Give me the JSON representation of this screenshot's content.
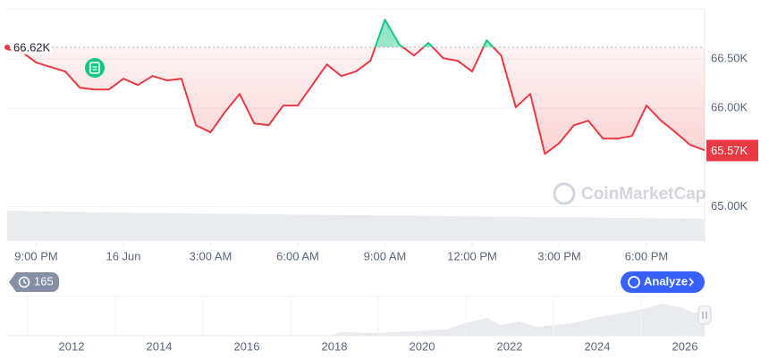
{
  "chart_data": {
    "type": "line",
    "values": [
      66600,
      66573,
      66464,
      66418,
      66373,
      66209,
      66191,
      66191,
      66300,
      66236,
      66327,
      66282,
      66300,
      65827,
      65755,
      65964,
      66145,
      65845,
      65827,
      66027,
      66027,
      66236,
      66445,
      66327,
      66373,
      66482,
      66900,
      66645,
      66536,
      66664,
      66509,
      66482,
      66373,
      66691,
      66536,
      66009,
      66145,
      65536,
      65645,
      65827,
      65873,
      65691,
      65691,
      65718,
      66027,
      65873,
      65755,
      65627,
      65573
    ],
    "colors": {
      "below": "#ea3943",
      "above": "#16c784"
    },
    "xlim": [
      0,
      48
    ],
    "xticks": [
      {
        "value": 2,
        "label": "9:00 PM"
      },
      {
        "value": 8,
        "label": "16 Jun"
      },
      {
        "value": 14,
        "label": "3:00 AM"
      },
      {
        "value": 20,
        "label": "6:00 AM"
      },
      {
        "value": 26,
        "label": "9:00 AM"
      },
      {
        "value": 32,
        "label": "12:00 PM"
      },
      {
        "value": 38,
        "label": "3:00 PM"
      },
      {
        "value": 44,
        "label": "6:00 PM"
      }
    ],
    "ylim": [
      64650,
      67100
    ],
    "yticks": [
      {
        "value": 66500,
        "label": "66.50K"
      },
      {
        "value": 66000,
        "label": "66.00K"
      },
      {
        "value": 65000,
        "label": "65.00K"
      }
    ],
    "grid": true,
    "reference": {
      "value": 66620,
      "label": "66.62K"
    },
    "last_price": {
      "value": 65570,
      "label": "65.57K"
    },
    "navigator_years": [
      "2012",
      "2014",
      "2016",
      "2018",
      "2020",
      "2022",
      "2024",
      "2026"
    ]
  },
  "ui": {
    "watermark": "CoinMarketCap",
    "history_count": "165",
    "analyze": "Analyze"
  }
}
